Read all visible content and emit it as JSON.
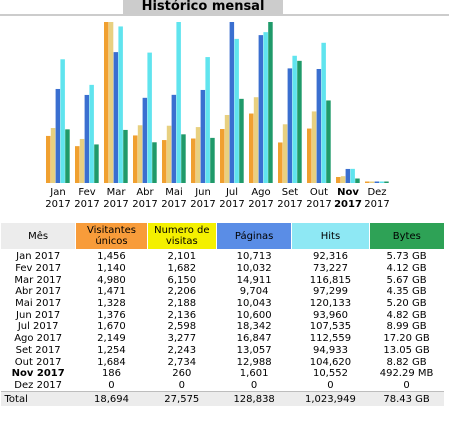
{
  "title": "Histórico mensal",
  "table": {
    "headers": [
      "Mês",
      "Visitantes únicos",
      "Numero de visitas",
      "Páginas",
      "Hits",
      "Bytes"
    ],
    "rows": [
      {
        "month": "Jan 2017",
        "visitors": "1,456",
        "visits": "2,101",
        "pages": "10,713",
        "hits": "92,316",
        "bytes": "5.73 GB"
      },
      {
        "month": "Fev 2017",
        "visitors": "1,140",
        "visits": "1,682",
        "pages": "10,032",
        "hits": "73,227",
        "bytes": "4.12 GB"
      },
      {
        "month": "Mar 2017",
        "visitors": "4,980",
        "visits": "6,150",
        "pages": "14,911",
        "hits": "116,815",
        "bytes": "5.67 GB"
      },
      {
        "month": "Abr 2017",
        "visitors": "1,471",
        "visits": "2,206",
        "pages": "9,704",
        "hits": "97,299",
        "bytes": "4.35 GB"
      },
      {
        "month": "Mai 2017",
        "visitors": "1,328",
        "visits": "2,188",
        "pages": "10,043",
        "hits": "120,133",
        "bytes": "5.20 GB"
      },
      {
        "month": "Jun 2017",
        "visitors": "1,376",
        "visits": "2,136",
        "pages": "10,600",
        "hits": "93,960",
        "bytes": "4.82 GB"
      },
      {
        "month": "Jul 2017",
        "visitors": "1,670",
        "visits": "2,598",
        "pages": "18,342",
        "hits": "107,535",
        "bytes": "8.99 GB"
      },
      {
        "month": "Ago 2017",
        "visitors": "2,149",
        "visits": "3,277",
        "pages": "16,847",
        "hits": "112,559",
        "bytes": "17.20 GB"
      },
      {
        "month": "Set 2017",
        "visitors": "1,254",
        "visits": "2,243",
        "pages": "13,057",
        "hits": "94,933",
        "bytes": "13.05 GB"
      },
      {
        "month": "Out 2017",
        "visitors": "1,684",
        "visits": "2,734",
        "pages": "12,988",
        "hits": "104,620",
        "bytes": "8.82 GB"
      },
      {
        "month": "Nov 2017",
        "visitors": "186",
        "visits": "260",
        "pages": "1,601",
        "hits": "10,552",
        "bytes": "492.29 MB"
      },
      {
        "month": "Dez 2017",
        "visitors": "0",
        "visits": "0",
        "pages": "0",
        "hits": "0",
        "bytes": "0"
      }
    ],
    "total": {
      "label": "Total",
      "visitors": "18,694",
      "visits": "27,575",
      "pages": "128,838",
      "hits": "1,023,949",
      "bytes": "78.43 GB"
    },
    "current_month_index": 10
  },
  "chart_data": {
    "type": "bar",
    "title": "Histórico mensal",
    "categories": [
      "Jan 2017",
      "Fev 2017",
      "Mar 2017",
      "Abr 2017",
      "Mai 2017",
      "Jun 2017",
      "Jul 2017",
      "Ago 2017",
      "Set 2017",
      "Out 2017",
      "Nov 2017",
      "Dez 2017"
    ],
    "category_lines": [
      [
        "Jan",
        "2017"
      ],
      [
        "Fev",
        "2017"
      ],
      [
        "Mar",
        "2017"
      ],
      [
        "Abr",
        "2017"
      ],
      [
        "Mai",
        "2017"
      ],
      [
        "Jun",
        "2017"
      ],
      [
        "Jul",
        "2017"
      ],
      [
        "Ago",
        "2017"
      ],
      [
        "Set",
        "2017"
      ],
      [
        "Out",
        "2017"
      ],
      [
        "Nov",
        "2017"
      ],
      [
        "Dez",
        "2017"
      ]
    ],
    "highlight_index": 10,
    "series": [
      {
        "name": "Visitantes únicos",
        "color": "#f0a030",
        "values": [
          1456,
          1140,
          4980,
          1471,
          1328,
          1376,
          1670,
          2149,
          1254,
          1684,
          186,
          0
        ]
      },
      {
        "name": "Numero de visitas",
        "color": "#e8d080",
        "values": [
          2101,
          1682,
          6150,
          2206,
          2188,
          2136,
          2598,
          3277,
          2243,
          2734,
          260,
          0
        ]
      },
      {
        "name": "Páginas",
        "color": "#3a6fd0",
        "values": [
          10713,
          10032,
          14911,
          9704,
          10043,
          10600,
          18342,
          16847,
          13057,
          12988,
          1601,
          0
        ]
      },
      {
        "name": "Hits",
        "color": "#60e4ee",
        "values": [
          92316,
          73227,
          116815,
          97299,
          120133,
          93960,
          107535,
          112559,
          94933,
          104620,
          10552,
          0
        ]
      },
      {
        "name": "Bytes",
        "color": "#1f9a6a",
        "values": [
          5.73,
          4.12,
          5.67,
          4.35,
          5.2,
          4.82,
          8.99,
          17.2,
          13.05,
          8.82,
          0.48,
          0
        ],
        "unit": "GB"
      }
    ]
  }
}
